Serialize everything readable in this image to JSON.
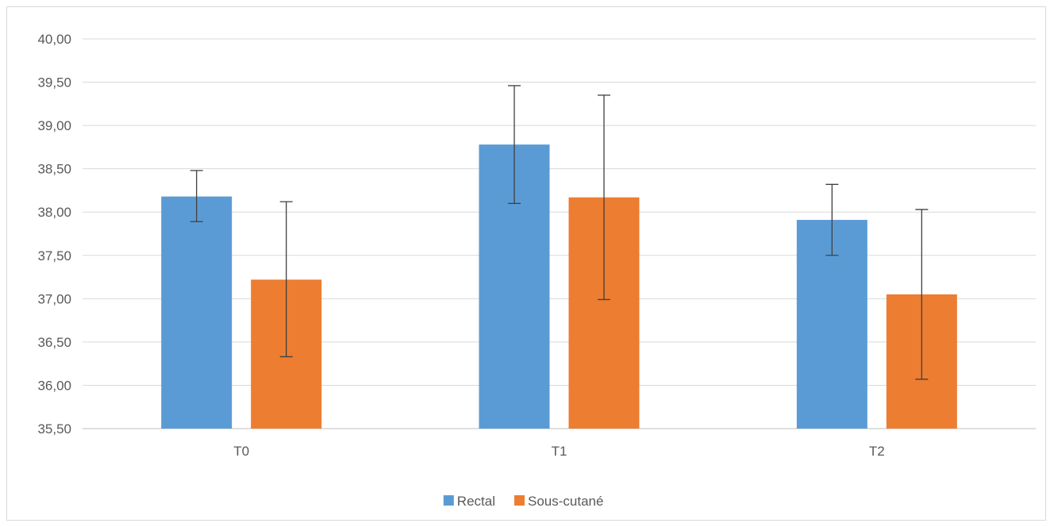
{
  "chart_data": {
    "type": "bar",
    "title": "",
    "xlabel": "",
    "ylabel": "",
    "categories": [
      "T0",
      "T1",
      "T2"
    ],
    "ylim": [
      35.5,
      40.0
    ],
    "ytick_step": 0.5,
    "ytick_labels": [
      "35,50",
      "36,00",
      "36,50",
      "37,00",
      "37,50",
      "38,00",
      "38,50",
      "39,00",
      "39,50",
      "40,00"
    ],
    "grid": true,
    "legend_position": "bottom",
    "series": [
      {
        "name": "Rectal",
        "color": "#5b9bd5",
        "values": [
          38.18,
          38.78,
          37.91
        ],
        "error_low": [
          37.89,
          38.1,
          37.5
        ],
        "error_high": [
          38.48,
          39.46,
          38.32
        ]
      },
      {
        "name": "Sous-cutané",
        "color": "#ed7d31",
        "values": [
          37.22,
          38.17,
          37.05
        ],
        "error_low": [
          36.33,
          36.99,
          36.07
        ],
        "error_high": [
          38.12,
          39.35,
          38.03
        ]
      }
    ]
  }
}
